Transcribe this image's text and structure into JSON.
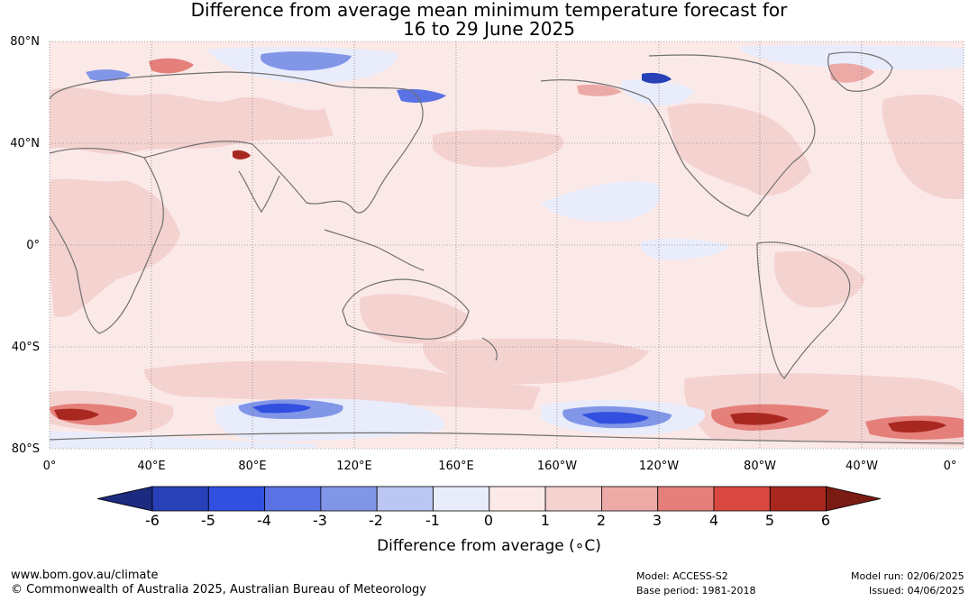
{
  "title_line1": "Difference from average mean minimum temperature forecast for",
  "title_line2": "16 to 29 June 2025",
  "lat_labels": [
    "80°N",
    "40°N",
    "0°",
    "40°S",
    "80°S"
  ],
  "lon_labels": [
    "0°",
    "40°E",
    "80°E",
    "120°E",
    "160°E",
    "160°W",
    "120°W",
    "80°W",
    "40°W",
    "0°"
  ],
  "colorbar": {
    "ticks": [
      "-6",
      "-5",
      "-4",
      "-3",
      "-2",
      "-1",
      "0",
      "1",
      "2",
      "3",
      "4",
      "5",
      "6"
    ],
    "colors": [
      "#1c2a80",
      "#2841b8",
      "#3150e0",
      "#5a72e4",
      "#8296e8",
      "#bcc6f2",
      "#e8ecfb",
      "#fbe9e8",
      "#f4d2d0",
      "#ecaaa6",
      "#e57f79",
      "#d94840",
      "#a82820",
      "#7a1c14"
    ],
    "label": "Difference from average (∘C)"
  },
  "footer": {
    "website": "www.bom.gov.au/climate",
    "copyright": "© Commonwealth of Australia 2025, Australian Bureau of Meteorology",
    "model": "Model: ACCESS-S2",
    "base_period": "Base period: 1981-2018",
    "model_run": "Model run: 02/06/2025",
    "issued": "Issued: 04/06/2025"
  }
}
